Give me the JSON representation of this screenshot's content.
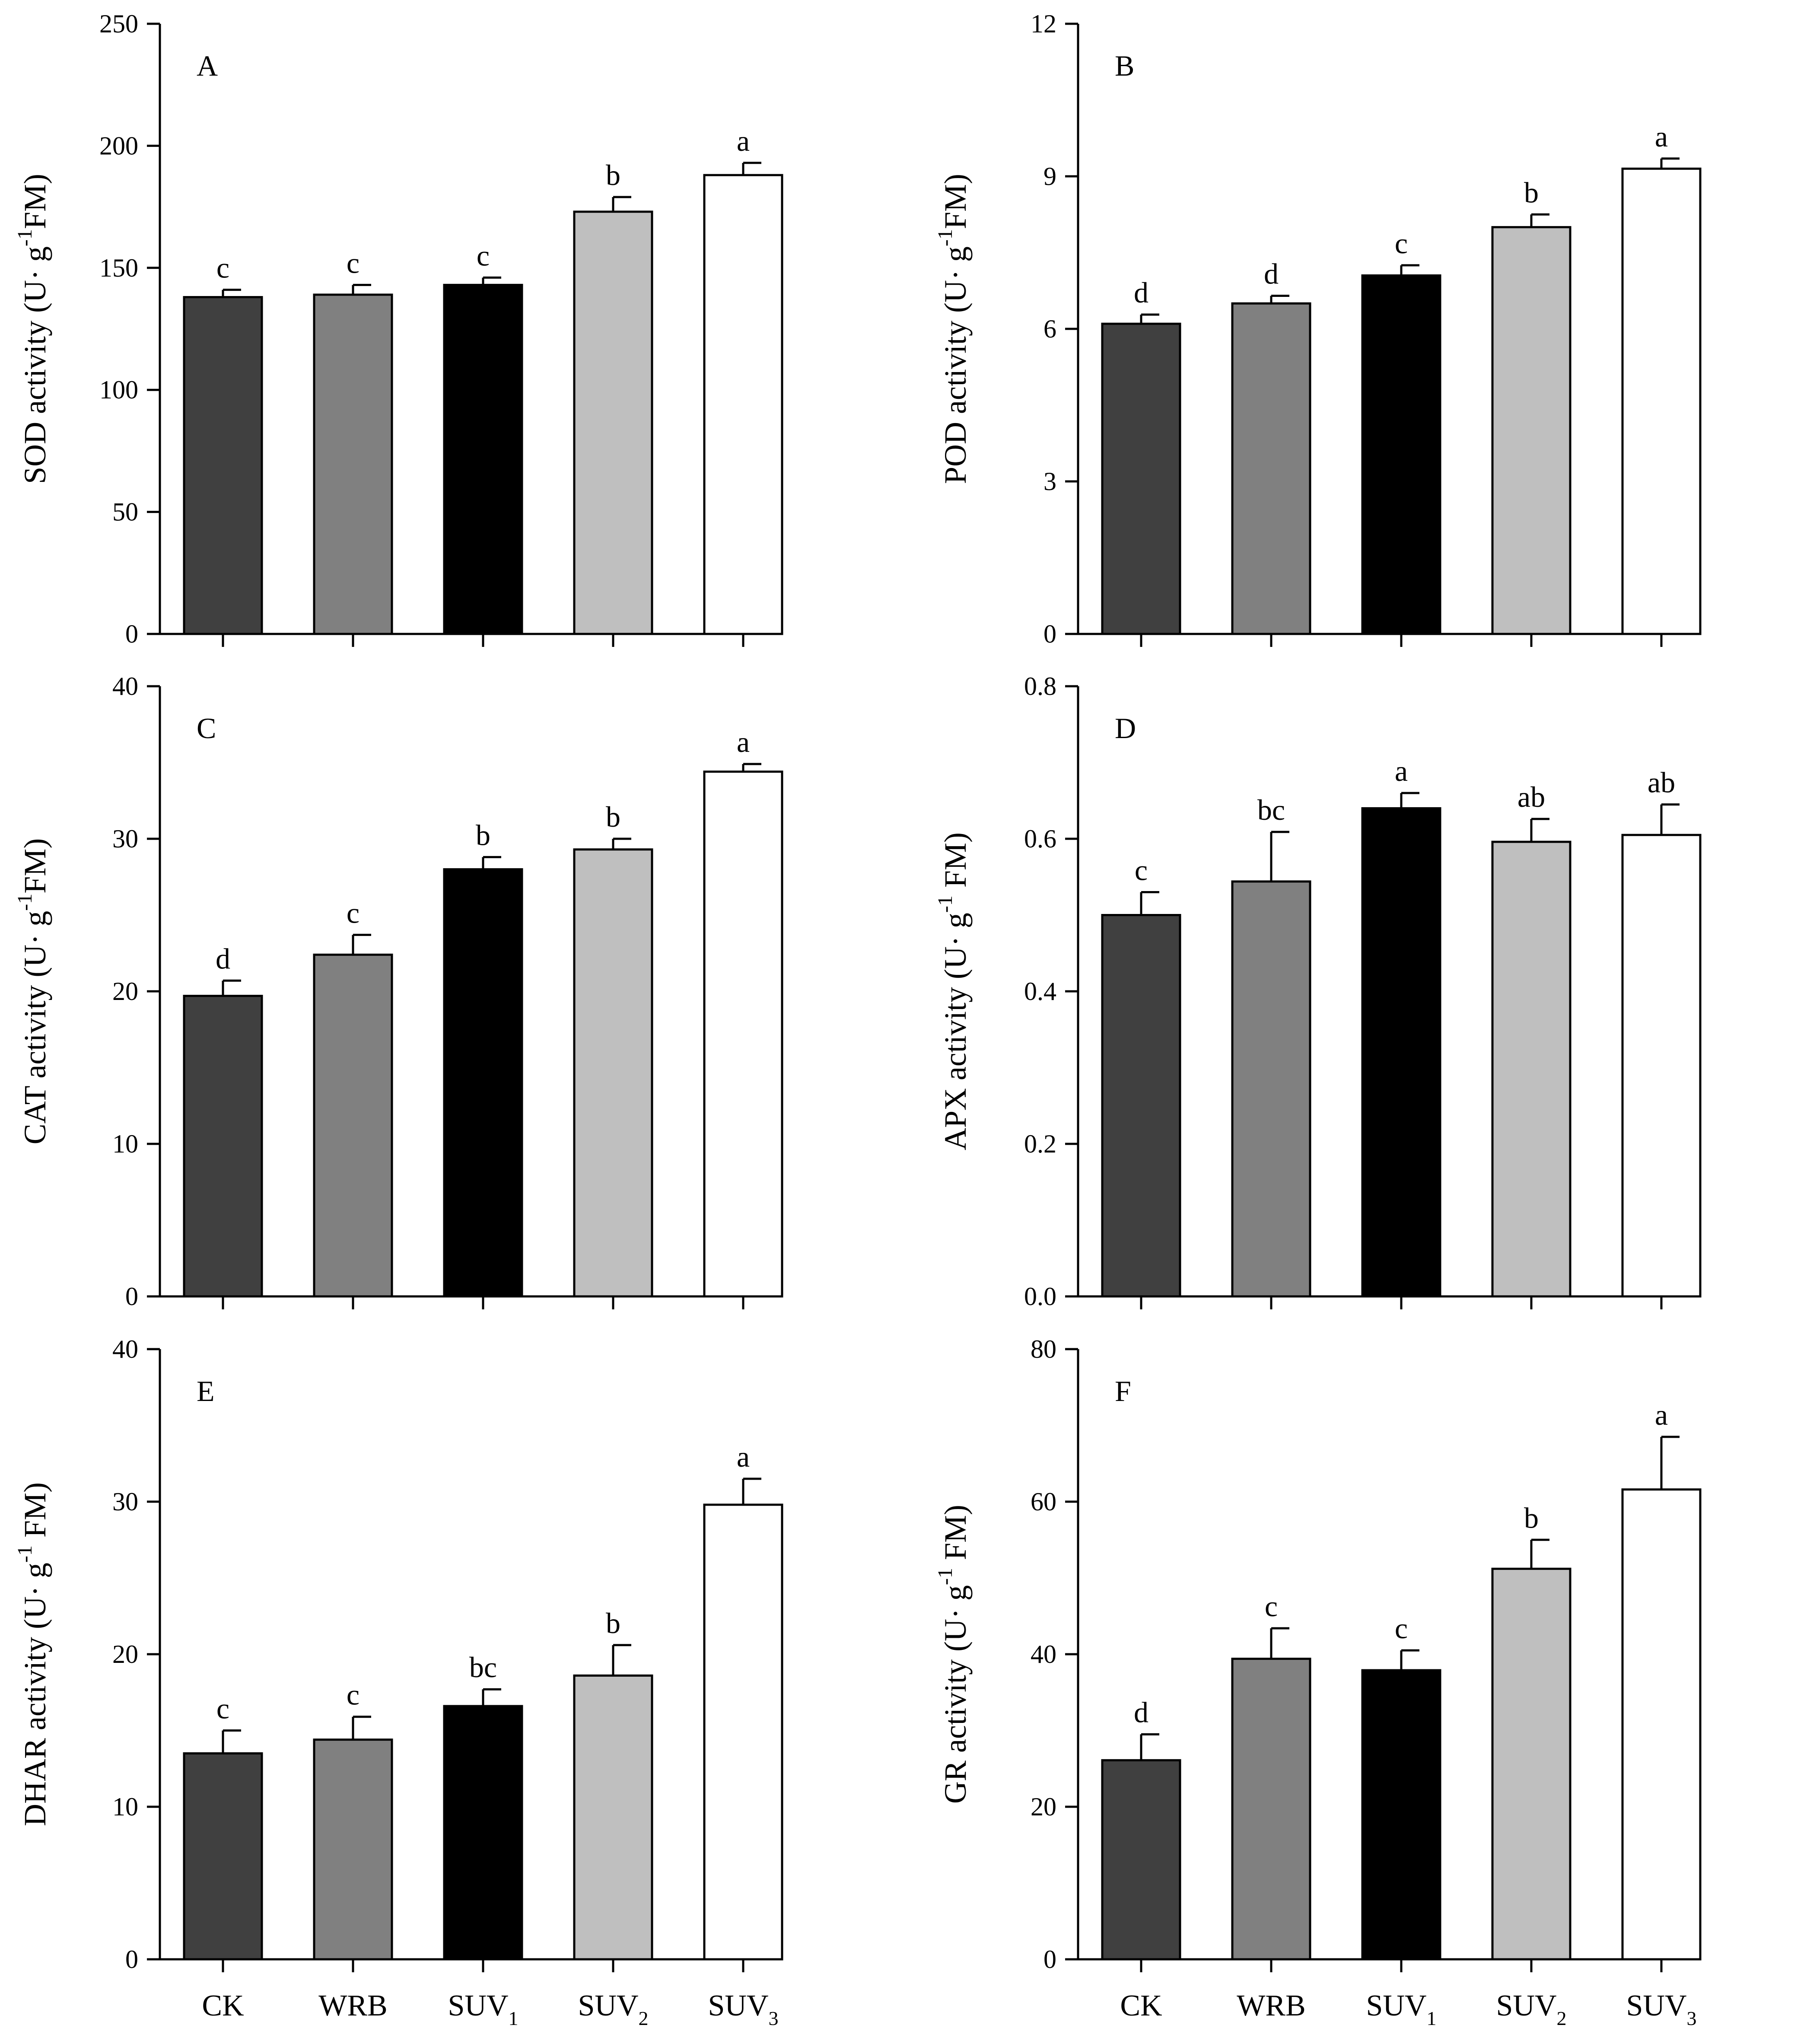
{
  "figure": {
    "categories": [
      {
        "main": "CK",
        "sub": ""
      },
      {
        "main": "WRB",
        "sub": ""
      },
      {
        "main": "SUV",
        "sub": "1"
      },
      {
        "main": "SUV",
        "sub": "2"
      },
      {
        "main": "SUV",
        "sub": "3"
      }
    ],
    "bar_colors": [
      "#404040",
      "#808080",
      "#000000",
      "#bfbfbf",
      "#ffffff"
    ]
  },
  "chart_data": [
    {
      "type": "bar",
      "panel": "A",
      "ylabel_pre": "SOD activity (U· g",
      "ylabel_sup": "-1",
      "ylabel_post": "FM)",
      "ylim": [
        0,
        250
      ],
      "yticks": [
        "0",
        "50",
        "100",
        "150",
        "200",
        "250"
      ],
      "ytick_values": [
        0,
        50,
        100,
        150,
        200,
        250
      ],
      "values": [
        138,
        139,
        143,
        173,
        188
      ],
      "errors": [
        3,
        4,
        3,
        6,
        5
      ],
      "significance": [
        "c",
        "c",
        "c",
        "b",
        "a"
      ]
    },
    {
      "type": "bar",
      "panel": "B",
      "ylabel_pre": "POD activity (U· g",
      "ylabel_sup": "-1",
      "ylabel_post": "FM)",
      "ylim": [
        0,
        12
      ],
      "yticks": [
        "0",
        "3",
        "6",
        "9",
        "12"
      ],
      "ytick_values": [
        0,
        3,
        6,
        9,
        12
      ],
      "values": [
        6.1,
        6.5,
        7.05,
        8.0,
        9.15
      ],
      "errors": [
        0.18,
        0.15,
        0.2,
        0.25,
        0.2
      ],
      "significance": [
        "d",
        "d",
        "c",
        "b",
        "a"
      ]
    },
    {
      "type": "bar",
      "panel": "C",
      "ylabel_pre": "CAT activity (U· g",
      "ylabel_sup": "-1",
      "ylabel_post": "FM)",
      "ylim": [
        0,
        40
      ],
      "yticks": [
        "0",
        "10",
        "20",
        "30",
        "40"
      ],
      "ytick_values": [
        0,
        10,
        20,
        30,
        40
      ],
      "values": [
        19.7,
        22.4,
        28.0,
        29.3,
        34.4
      ],
      "errors": [
        1.0,
        1.3,
        0.8,
        0.7,
        0.5
      ],
      "significance": [
        "d",
        "c",
        "b",
        "b",
        "a"
      ]
    },
    {
      "type": "bar",
      "panel": "D",
      "ylabel_pre": "APX activity (U· g",
      "ylabel_sup": "-1",
      "ylabel_post": " FM)",
      "ylim": [
        0,
        0.8
      ],
      "yticks": [
        "0.0",
        "0.2",
        "0.4",
        "0.6",
        "0.8"
      ],
      "ytick_values": [
        0,
        0.2,
        0.4,
        0.6,
        0.8
      ],
      "values": [
        0.5,
        0.544,
        0.64,
        0.596,
        0.605
      ],
      "errors": [
        0.03,
        0.065,
        0.02,
        0.03,
        0.04
      ],
      "significance": [
        "c",
        "bc",
        "a",
        "ab",
        "ab"
      ]
    },
    {
      "type": "bar",
      "panel": "E",
      "ylabel_pre": "DHAR activity (U· g",
      "ylabel_sup": "-1",
      "ylabel_post": " FM)",
      "ylim": [
        0,
        40
      ],
      "yticks": [
        "0",
        "10",
        "20",
        "30",
        "40"
      ],
      "ytick_values": [
        0,
        10,
        20,
        30,
        40
      ],
      "values": [
        13.5,
        14.4,
        16.6,
        18.6,
        29.8
      ],
      "errors": [
        1.5,
        1.5,
        1.1,
        2.0,
        1.7
      ],
      "significance": [
        "c",
        "c",
        "bc",
        "b",
        "a"
      ]
    },
    {
      "type": "bar",
      "panel": "F",
      "ylabel_pre": "GR activity (U· g",
      "ylabel_sup": "-1",
      "ylabel_post": " FM)",
      "ylim": [
        0,
        80
      ],
      "yticks": [
        "0",
        "20",
        "40",
        "60",
        "80"
      ],
      "ytick_values": [
        0,
        20,
        40,
        60,
        80
      ],
      "values": [
        26.1,
        39.4,
        37.9,
        51.2,
        61.6
      ],
      "errors": [
        3.4,
        4.0,
        2.6,
        3.8,
        6.9
      ],
      "significance": [
        "d",
        "c",
        "c",
        "b",
        "a"
      ]
    }
  ]
}
